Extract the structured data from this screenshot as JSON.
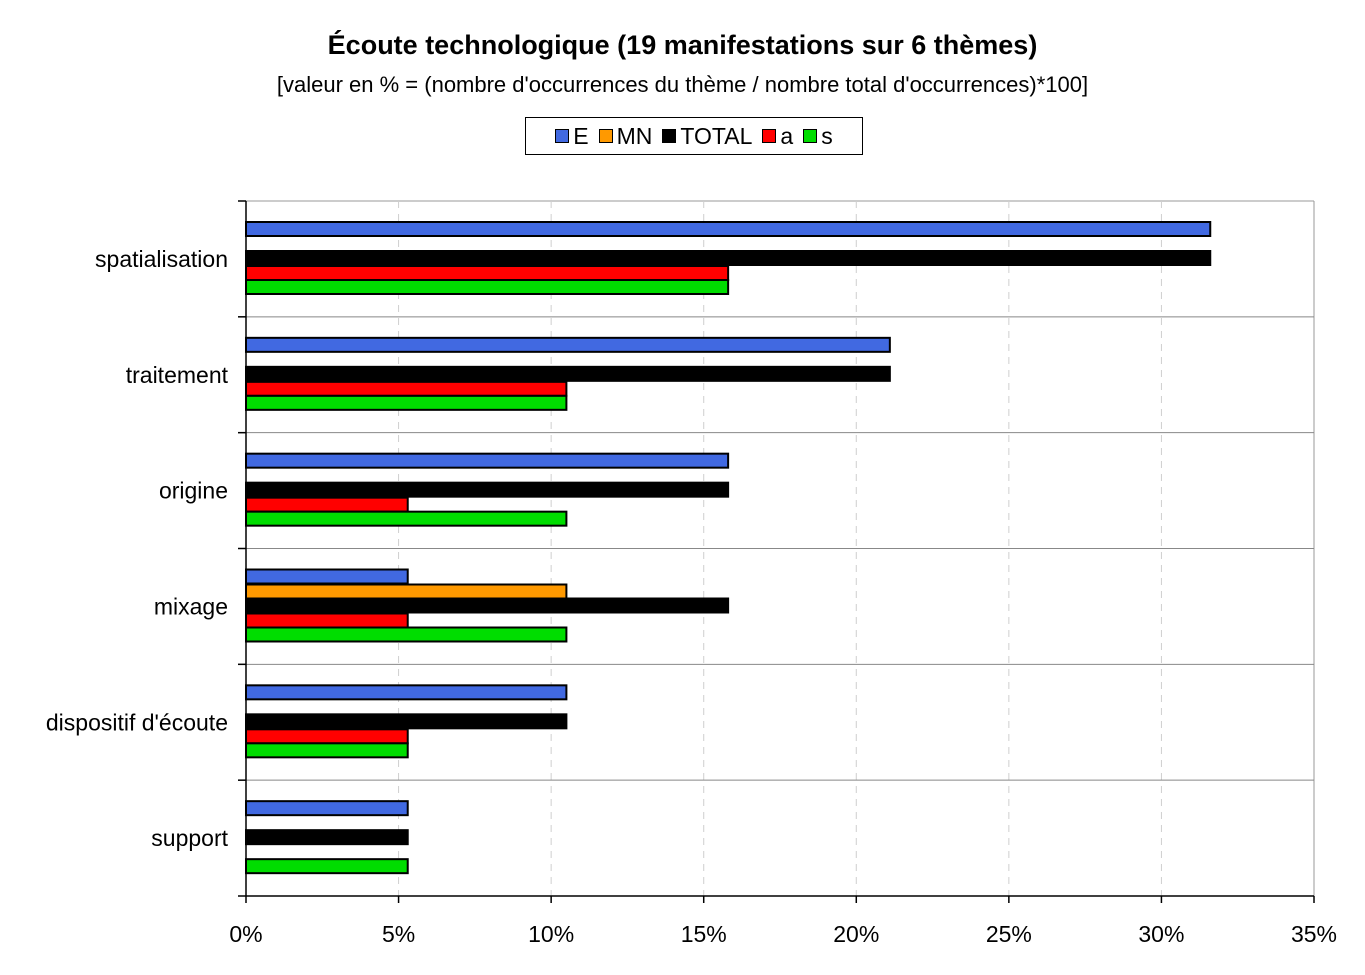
{
  "chart_data": {
    "type": "bar",
    "orientation": "horizontal",
    "title": "É́coute technologique (19 manifestations sur 6 thèmes)",
    "subtitle": "[valeur en % = (nombre d'occurrences du thème / nombre total d'occurrences)*100]",
    "categories": [
      "spatialisation",
      "traitement",
      "origine",
      "mixage",
      "dispositif d'écoute",
      "support"
    ],
    "series": [
      {
        "name": "E",
        "color": "#4169E1",
        "values": [
          31.6,
          21.1,
          15.8,
          5.3,
          10.5,
          5.3
        ]
      },
      {
        "name": "MN",
        "color": "#FF9900",
        "values": [
          0,
          0,
          0,
          10.5,
          0,
          0
        ]
      },
      {
        "name": "TOTAL",
        "color": "#000000",
        "values": [
          31.6,
          21.1,
          15.8,
          15.8,
          10.5,
          5.3
        ]
      },
      {
        "name": "a",
        "color": "#FF0000",
        "values": [
          15.8,
          10.5,
          5.3,
          5.3,
          5.3,
          0
        ]
      },
      {
        "name": "s",
        "color": "#00DD00",
        "values": [
          15.8,
          10.5,
          10.5,
          10.5,
          5.3,
          5.3
        ]
      }
    ],
    "xlim": [
      0,
      35
    ],
    "xticks": [
      "0%",
      "5%",
      "10%",
      "15%",
      "20%",
      "25%",
      "30%",
      "35%"
    ],
    "xtick_values": [
      0,
      5,
      10,
      15,
      20,
      25,
      30,
      35
    ],
    "grid": true,
    "legend_position": "top-center"
  }
}
